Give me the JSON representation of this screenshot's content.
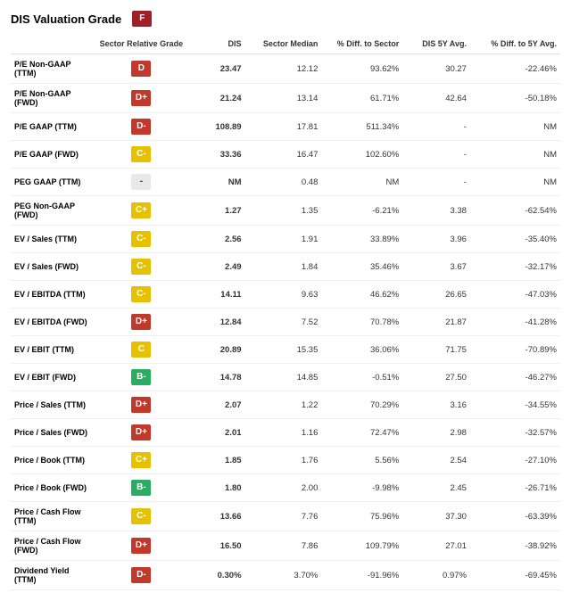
{
  "header": {
    "title": "DIS Valuation Grade",
    "overall_grade": "F",
    "overall_grade_color": "#a0202a"
  },
  "columns": [
    "",
    "Sector Relative Grade",
    "DIS",
    "Sector Median",
    "% Diff. to Sector",
    "DIS 5Y Avg.",
    "% Diff. to 5Y Avg."
  ],
  "grade_colors": {
    "D": "#c0392b",
    "D+": "#c0392b",
    "D-": "#c0392b",
    "F": "#a0202a",
    "C": "#e5c100",
    "C+": "#e5c100",
    "C-": "#e5c100",
    "B-": "#27ae60"
  },
  "rows": [
    {
      "metric": "P/E Non-GAAP (TTM)",
      "grade": "D",
      "dis": "23.47",
      "median": "12.12",
      "diff_sector": "93.62%",
      "avg5y": "30.27",
      "diff_5y": "-22.46%"
    },
    {
      "metric": "P/E Non-GAAP (FWD)",
      "grade": "D+",
      "dis": "21.24",
      "median": "13.14",
      "diff_sector": "61.71%",
      "avg5y": "42.64",
      "diff_5y": "-50.18%"
    },
    {
      "metric": "P/E GAAP (TTM)",
      "grade": "D-",
      "dis": "108.89",
      "median": "17.81",
      "diff_sector": "511.34%",
      "avg5y": "-",
      "diff_5y": "NM"
    },
    {
      "metric": "P/E GAAP (FWD)",
      "grade": "C-",
      "dis": "33.36",
      "median": "16.47",
      "diff_sector": "102.60%",
      "avg5y": "-",
      "diff_5y": "NM"
    },
    {
      "metric": "PEG GAAP (TTM)",
      "grade": "-",
      "dis": "NM",
      "median": "0.48",
      "diff_sector": "NM",
      "avg5y": "-",
      "diff_5y": "NM"
    },
    {
      "metric": "PEG Non-GAAP (FWD)",
      "grade": "C+",
      "dis": "1.27",
      "median": "1.35",
      "diff_sector": "-6.21%",
      "avg5y": "3.38",
      "diff_5y": "-62.54%"
    },
    {
      "metric": "EV / Sales (TTM)",
      "grade": "C-",
      "dis": "2.56",
      "median": "1.91",
      "diff_sector": "33.89%",
      "avg5y": "3.96",
      "diff_5y": "-35.40%"
    },
    {
      "metric": "EV / Sales (FWD)",
      "grade": "C-",
      "dis": "2.49",
      "median": "1.84",
      "diff_sector": "35.46%",
      "avg5y": "3.67",
      "diff_5y": "-32.17%"
    },
    {
      "metric": "EV / EBITDA (TTM)",
      "grade": "C-",
      "dis": "14.11",
      "median": "9.63",
      "diff_sector": "46.62%",
      "avg5y": "26.65",
      "diff_5y": "-47.03%"
    },
    {
      "metric": "EV / EBITDA (FWD)",
      "grade": "D+",
      "dis": "12.84",
      "median": "7.52",
      "diff_sector": "70.78%",
      "avg5y": "21.87",
      "diff_5y": "-41.28%"
    },
    {
      "metric": "EV / EBIT (TTM)",
      "grade": "C",
      "dis": "20.89",
      "median": "15.35",
      "diff_sector": "36.06%",
      "avg5y": "71.75",
      "diff_5y": "-70.89%"
    },
    {
      "metric": "EV / EBIT (FWD)",
      "grade": "B-",
      "dis": "14.78",
      "median": "14.85",
      "diff_sector": "-0.51%",
      "avg5y": "27.50",
      "diff_5y": "-46.27%"
    },
    {
      "metric": "Price / Sales (TTM)",
      "grade": "D+",
      "dis": "2.07",
      "median": "1.22",
      "diff_sector": "70.29%",
      "avg5y": "3.16",
      "diff_5y": "-34.55%"
    },
    {
      "metric": "Price / Sales (FWD)",
      "grade": "D+",
      "dis": "2.01",
      "median": "1.16",
      "diff_sector": "72.47%",
      "avg5y": "2.98",
      "diff_5y": "-32.57%"
    },
    {
      "metric": "Price / Book (TTM)",
      "grade": "C+",
      "dis": "1.85",
      "median": "1.76",
      "diff_sector": "5.56%",
      "avg5y": "2.54",
      "diff_5y": "-27.10%"
    },
    {
      "metric": "Price / Book (FWD)",
      "grade": "B-",
      "dis": "1.80",
      "median": "2.00",
      "diff_sector": "-9.98%",
      "avg5y": "2.45",
      "diff_5y": "-26.71%"
    },
    {
      "metric": "Price / Cash Flow (TTM)",
      "grade": "C-",
      "dis": "13.66",
      "median": "7.76",
      "diff_sector": "75.96%",
      "avg5y": "37.30",
      "diff_5y": "-63.39%"
    },
    {
      "metric": "Price / Cash Flow (FWD)",
      "grade": "D+",
      "dis": "16.50",
      "median": "7.86",
      "diff_sector": "109.79%",
      "avg5y": "27.01",
      "diff_5y": "-38.92%"
    },
    {
      "metric": "Dividend Yield (TTM)",
      "grade": "D-",
      "dis": "0.30%",
      "median": "3.70%",
      "diff_sector": "-91.96%",
      "avg5y": "0.97%",
      "diff_5y": "-69.45%"
    }
  ]
}
